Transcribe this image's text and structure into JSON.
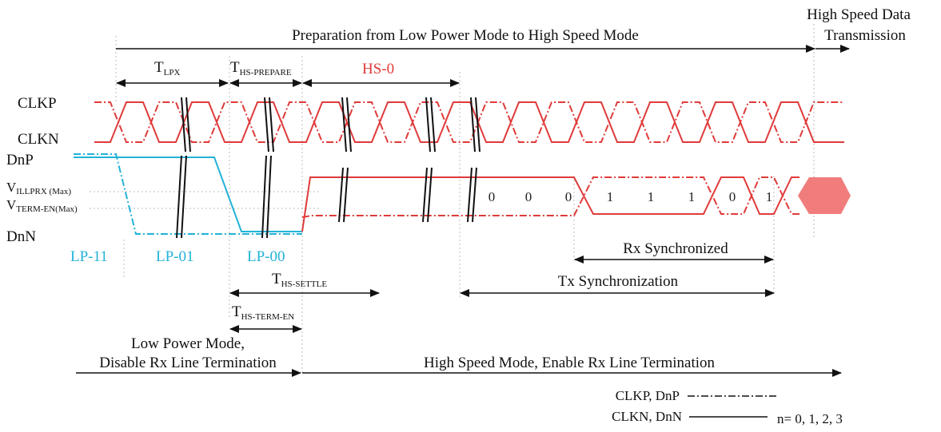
{
  "colors": {
    "clock_data": "#e03a3a",
    "lp_signal": "#23b2d8",
    "hs_burst_fill": "#f07c7c",
    "guide": "#bdbdbd",
    "ink": "#111111"
  },
  "top": {
    "preparation_label": "Preparation from Low Power Mode to High Speed Mode",
    "hs_data_line1": "High Speed Data",
    "hs_data_line2": "Transmission"
  },
  "timing": {
    "t_lpx": {
      "main": "T",
      "sub": "LPX"
    },
    "t_hs_prepare": {
      "main": "T",
      "sub": "HS-PREPARE"
    },
    "hs0": "HS-0",
    "t_hs_settle": {
      "main": "T",
      "sub": "HS-SETTLE"
    },
    "t_hs_term_en": {
      "main": "T",
      "sub": "HS-TERM-EN"
    }
  },
  "signals": {
    "clkp": "CLKP",
    "clkn": "CLKN",
    "dnp": "DnP",
    "dnn": "DnN",
    "v_illprx": {
      "main": "V",
      "sub": "ILLPRX (Max)"
    },
    "v_term_en": {
      "main": "V",
      "sub": "TERM-EN(Max)"
    }
  },
  "states": {
    "lp11": "LP-11",
    "lp01": "LP-01",
    "lp00": "LP-00"
  },
  "bits": [
    "0",
    "0",
    "0",
    "1",
    "1",
    "1",
    "0",
    "1"
  ],
  "sync": {
    "rx": "Rx Synchronized",
    "tx": "Tx Synchronization"
  },
  "modes": {
    "low_power_line1": "Low Power Mode,",
    "low_power_line2": "Disable Rx Line Termination",
    "high_speed": "High Speed Mode, Enable Rx Line Termination"
  },
  "legend": {
    "dashdot_label": "CLKP, DnP",
    "solid_label": "CLKN, DnN",
    "n_values": "n= 0, 1, 2, 3"
  }
}
